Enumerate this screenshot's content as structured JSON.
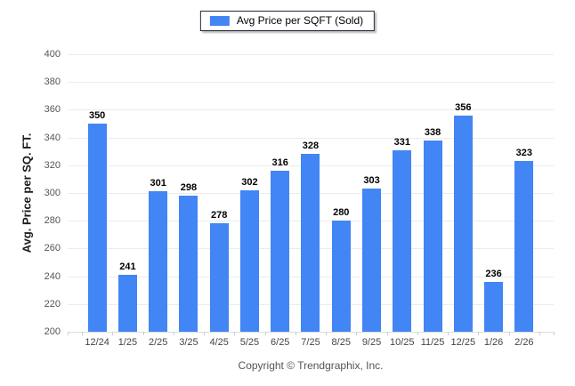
{
  "legend": {
    "label": "Avg Price per SQFT (Sold)",
    "swatch_color": "#4285f4"
  },
  "footer": {
    "copyright": "Copyright © Trendgraphix, Inc."
  },
  "chart_data": {
    "type": "bar",
    "categories": [
      "12/24",
      "1/25",
      "2/25",
      "3/25",
      "4/25",
      "5/25",
      "6/25",
      "7/25",
      "8/25",
      "9/25",
      "10/25",
      "11/25",
      "12/25",
      "1/26",
      "2/26"
    ],
    "values": [
      350,
      241,
      301,
      298,
      278,
      302,
      316,
      328,
      280,
      303,
      331,
      338,
      356,
      236,
      323
    ],
    "title": "",
    "xlabel": "",
    "ylabel": "Avg. Price per SQ. FT.",
    "ylim": [
      200,
      400
    ],
    "yticks": [
      400,
      380,
      360,
      340,
      320,
      300,
      280,
      260,
      240,
      220,
      200
    ],
    "bar_color": "#4285f4",
    "grid": true,
    "legend_position": "top-center"
  }
}
